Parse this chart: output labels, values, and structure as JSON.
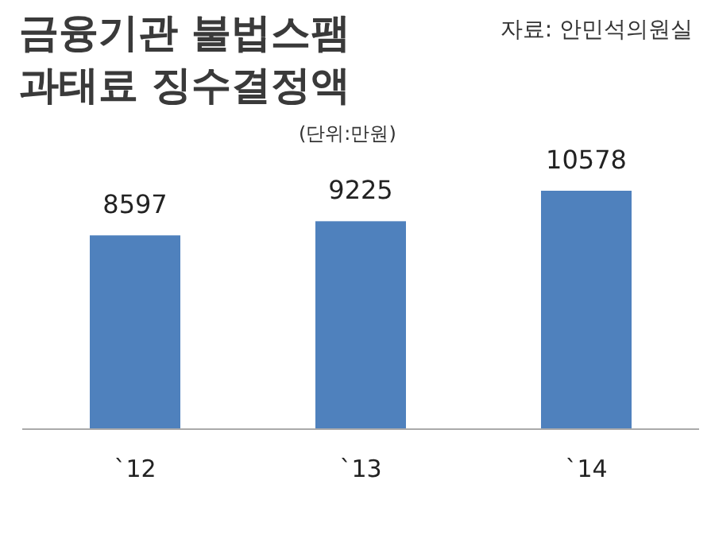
{
  "chart_data": {
    "type": "bar",
    "title": "금융기관 불법스팸 과태료 징수결정액",
    "subtitle": "(단위:만원)",
    "annotations": [
      "자료: 안민석의원실"
    ],
    "categories": [
      "`12",
      "`13",
      "`14"
    ],
    "values": [
      8597,
      9225,
      10578
    ],
    "color": "#4f81bd",
    "data_labels": true
  }
}
